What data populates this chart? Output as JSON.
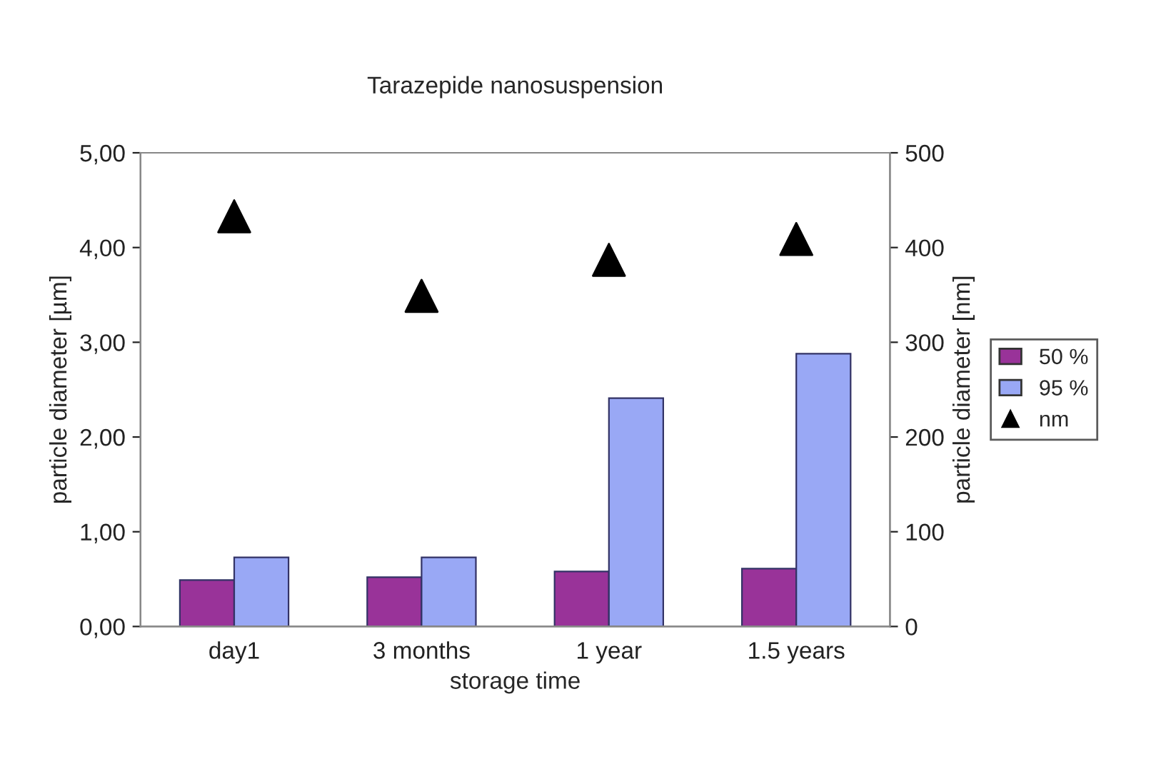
{
  "chart_data": {
    "type": "bar",
    "title": "Tarazepide nanosuspension",
    "xlabel": "storage time",
    "ylabel": "particle diameter [µm]",
    "y2label": "particle diameter [nm]",
    "categories": [
      "day1",
      "3 months",
      "1 year",
      "1.5 years"
    ],
    "series": [
      {
        "name": "50 %",
        "color": "#993399",
        "values": [
          0.49,
          0.52,
          0.58,
          0.61
        ]
      },
      {
        "name": "95 %",
        "color": "#99a8f5",
        "values": [
          0.73,
          0.73,
          2.41,
          2.88
        ]
      },
      {
        "name": "nm",
        "type": "scatter",
        "axis": "y2",
        "color": "#000000",
        "marker": "triangle",
        "values": [
          433,
          349,
          387,
          409
        ]
      }
    ],
    "ylim": [
      0,
      5
    ],
    "yticks": [
      {
        "value": 0,
        "label": "0,00"
      },
      {
        "value": 1,
        "label": "1,00"
      },
      {
        "value": 2,
        "label": "2,00"
      },
      {
        "value": 3,
        "label": "3,00"
      },
      {
        "value": 4,
        "label": "4,00"
      },
      {
        "value": 5,
        "label": "5,00"
      }
    ],
    "y2lim": [
      0,
      500
    ],
    "y2ticks": [
      0,
      100,
      200,
      300,
      400,
      500
    ],
    "grid": false,
    "legend": "right"
  }
}
